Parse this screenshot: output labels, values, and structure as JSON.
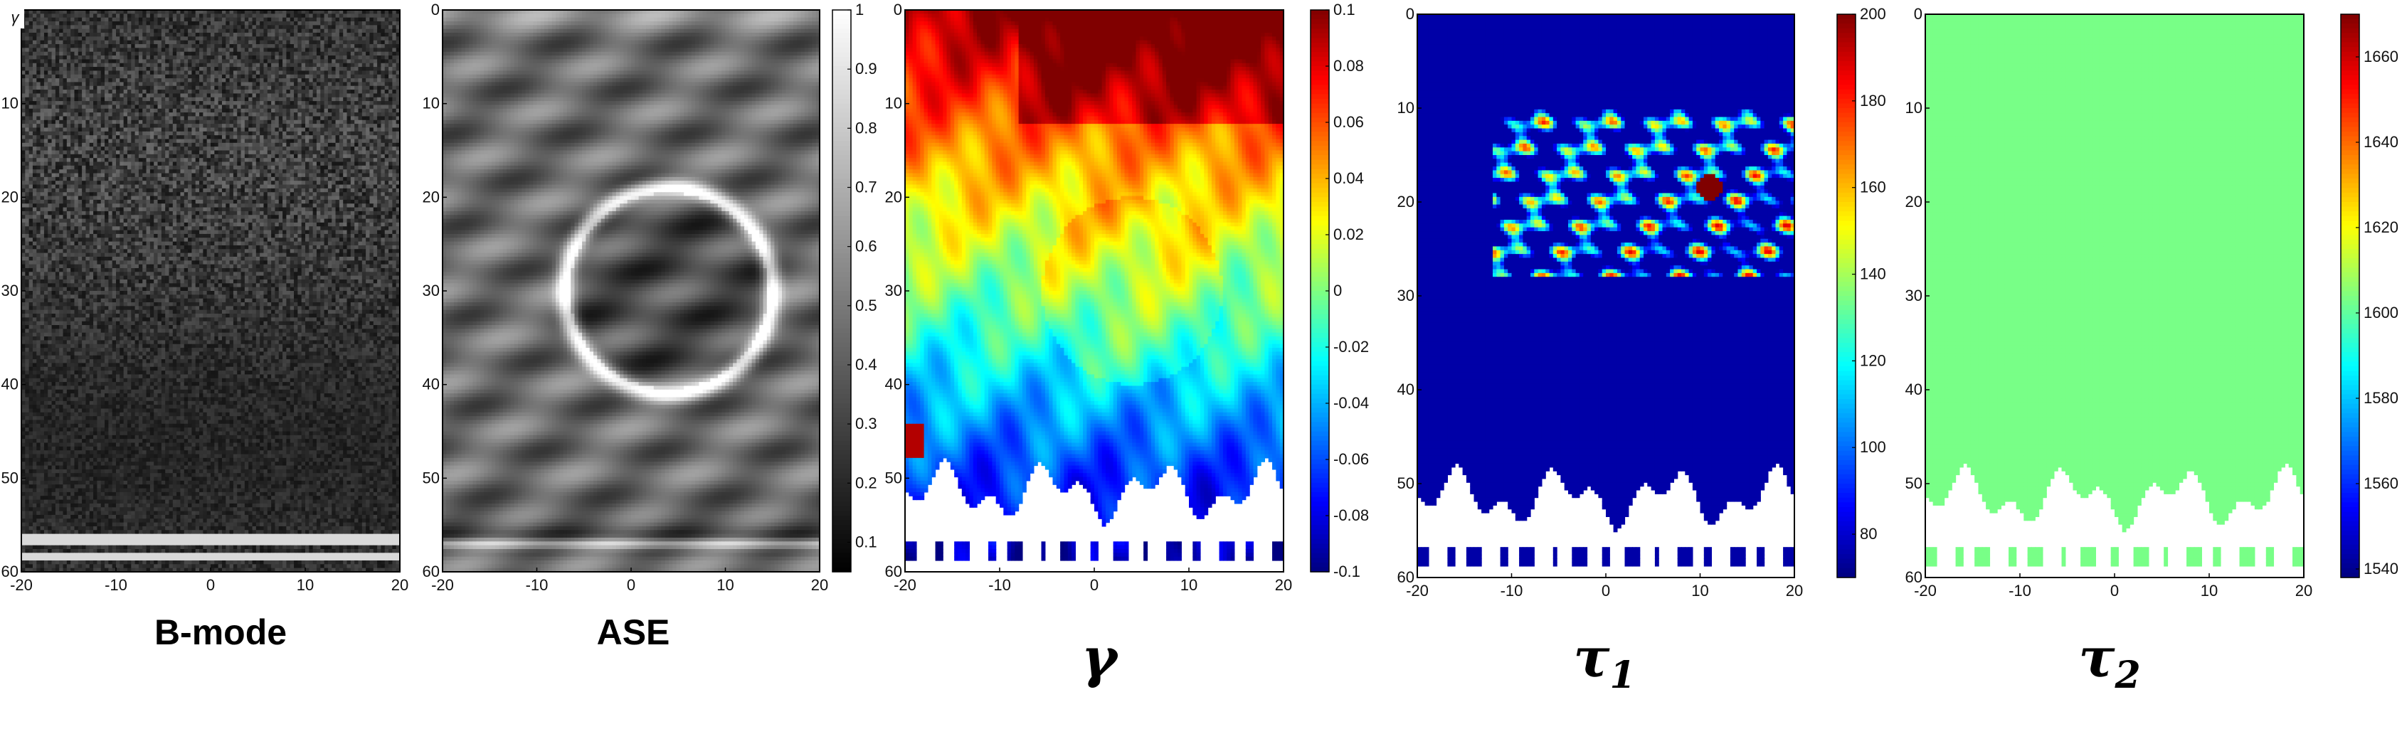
{
  "figure": {
    "panels": [
      {
        "id": "bmode",
        "title": "B-mode",
        "title_style": "plain",
        "corner_label": "γ"
      },
      {
        "id": "ase",
        "title": "ASE",
        "title_style": "plain"
      },
      {
        "id": "gamma",
        "title": "γ",
        "title_style": "greek"
      },
      {
        "id": "tau1",
        "title": "τ",
        "title_sub": "1",
        "title_style": "greek"
      },
      {
        "id": "tau2",
        "title": "τ",
        "title_sub": "2",
        "title_style": "greek"
      }
    ]
  },
  "chart_data": [
    {
      "type": "heatmap",
      "title": "B-mode",
      "xlim": [
        -20,
        20
      ],
      "ylim": [
        0,
        60
      ],
      "y_reversed": true,
      "x_ticks": [
        -20,
        -10,
        0,
        10,
        20
      ],
      "y_ticks": [
        10,
        20,
        30,
        40,
        50,
        60
      ],
      "y_tick_labels": [
        "10",
        "20",
        "30",
        "40",
        "50",
        "60"
      ],
      "corner_label": "γ",
      "colormap": "gray",
      "colorbar": false,
      "content": "speckle"
    },
    {
      "type": "heatmap",
      "title": "ASE",
      "xlim": [
        -20,
        20
      ],
      "ylim": [
        0,
        60
      ],
      "y_reversed": true,
      "x_ticks": [
        -20,
        -10,
        0,
        10,
        20
      ],
      "y_ticks": [
        0,
        10,
        20,
        30,
        40,
        50,
        60
      ],
      "colormap": "gray",
      "colorbar": true,
      "clim": [
        0.05,
        1
      ],
      "colorbar_ticks": [
        0.1,
        0.2,
        0.3,
        0.4,
        0.5,
        0.6,
        0.7,
        0.8,
        0.9,
        1
      ],
      "colorbar_tick_labels": [
        "0.1",
        "0.2",
        "0.3",
        "0.4",
        "0.5",
        "0.6",
        "0.7",
        "0.8",
        "0.9",
        "1"
      ],
      "content": "inclusion-ring"
    },
    {
      "type": "heatmap",
      "title": "γ",
      "xlim": [
        -20,
        20
      ],
      "ylim": [
        0,
        60
      ],
      "y_reversed": true,
      "x_ticks": [
        -20,
        -10,
        0,
        10,
        20
      ],
      "y_ticks": [
        0,
        10,
        20,
        30,
        40,
        50,
        60
      ],
      "colormap": "jet",
      "colorbar": true,
      "clim": [
        -0.1,
        0.1
      ],
      "colorbar_ticks": [
        -0.1,
        -0.08,
        -0.06,
        -0.04,
        -0.02,
        0,
        0.02,
        0.04,
        0.06,
        0.08,
        0.1
      ],
      "colorbar_tick_labels": [
        "-0.1",
        "-0.08",
        "-0.06",
        "-0.04",
        "-0.02",
        "0",
        "0.02",
        "0.04",
        "0.06",
        "0.08",
        "0.1"
      ],
      "content": "gamma-map"
    },
    {
      "type": "heatmap",
      "title": "τ1",
      "xlim": [
        -20,
        20
      ],
      "ylim": [
        0,
        60
      ],
      "y_reversed": true,
      "x_ticks": [
        -20,
        -10,
        0,
        10,
        20
      ],
      "y_ticks": [
        0,
        10,
        20,
        30,
        40,
        50,
        60
      ],
      "colormap": "jet",
      "colorbar": true,
      "clim": [
        70,
        200
      ],
      "colorbar_ticks": [
        80,
        100,
        120,
        140,
        160,
        180,
        200
      ],
      "colorbar_tick_labels": [
        "80",
        "100",
        "120",
        "140",
        "160",
        "180",
        "200"
      ],
      "content": "tau1-map"
    },
    {
      "type": "heatmap",
      "title": "τ2",
      "xlim": [
        -20,
        20
      ],
      "ylim": [
        0,
        60
      ],
      "y_reversed": true,
      "x_ticks": [
        -20,
        -10,
        0,
        10,
        20
      ],
      "y_ticks": [
        0,
        10,
        20,
        30,
        40,
        50,
        60
      ],
      "colormap": "jet",
      "colorbar": true,
      "clim": [
        1538,
        1670
      ],
      "colorbar_ticks": [
        1540,
        1560,
        1580,
        1600,
        1620,
        1640,
        1660
      ],
      "colorbar_tick_labels": [
        "1540",
        "1560",
        "1580",
        "1600",
        "1620",
        "1640",
        "1660"
      ],
      "content": "tau2-map"
    }
  ]
}
